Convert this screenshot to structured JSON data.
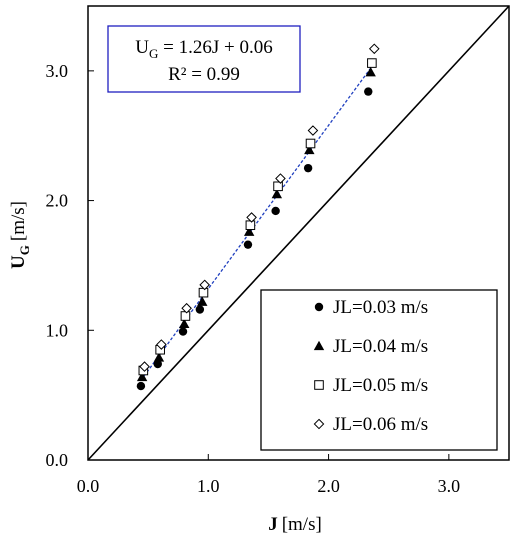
{
  "chart_data": {
    "type": "scatter",
    "xlabel": {
      "symbol": "J",
      "unit": "[m/s]"
    },
    "ylabel": {
      "symbol": "U",
      "subscript": "G",
      "unit": "[m/s]"
    },
    "xlim": [
      0,
      3.5
    ],
    "ylim": [
      0,
      3.5
    ],
    "xticks": [
      "0.0",
      "1.0",
      "2.0",
      "3.0"
    ],
    "yticks": [
      "0.0",
      "1.0",
      "2.0",
      "3.0"
    ],
    "grid": false,
    "legend_position": "bottom-right",
    "annotation": {
      "line1_prefix": "U",
      "line1_subscript": "G",
      "line1_suffix": " = 1.26J + 0.06",
      "line2": "R² = 0.99",
      "border_color": "#1f1fbf"
    },
    "reference_line": {
      "slope": 1,
      "intercept": 0,
      "color": "#000000"
    },
    "fit_line": {
      "slope": 1.26,
      "intercept": 0.06,
      "x_range": [
        0.44,
        2.36
      ],
      "color": "#1f3fbf",
      "style": "dashed"
    },
    "series": [
      {
        "name": "JL=0.03 m/s",
        "marker": "circle-filled",
        "x": [
          0.44,
          0.58,
          0.79,
          0.93,
          1.33,
          1.56,
          1.83,
          2.33
        ],
        "y": [
          0.57,
          0.74,
          0.99,
          1.16,
          1.66,
          1.92,
          2.25,
          2.84
        ]
      },
      {
        "name": "JL=0.04 m/s",
        "marker": "triangle-filled",
        "x": [
          0.45,
          0.59,
          0.8,
          0.95,
          1.34,
          1.57,
          1.84,
          2.35
        ],
        "y": [
          0.64,
          0.79,
          1.05,
          1.22,
          1.76,
          2.05,
          2.39,
          2.99
        ]
      },
      {
        "name": "JL=0.05 m/s",
        "marker": "square-open",
        "x": [
          0.46,
          0.6,
          0.81,
          0.96,
          1.35,
          1.58,
          1.85,
          2.36
        ],
        "y": [
          0.69,
          0.85,
          1.11,
          1.29,
          1.81,
          2.11,
          2.44,
          3.06
        ]
      },
      {
        "name": "JL=0.06 m/s",
        "marker": "diamond-open",
        "x": [
          0.47,
          0.61,
          0.82,
          0.97,
          1.36,
          1.6,
          1.87,
          2.38
        ],
        "y": [
          0.72,
          0.89,
          1.17,
          1.35,
          1.87,
          2.17,
          2.54,
          3.17
        ]
      }
    ]
  }
}
